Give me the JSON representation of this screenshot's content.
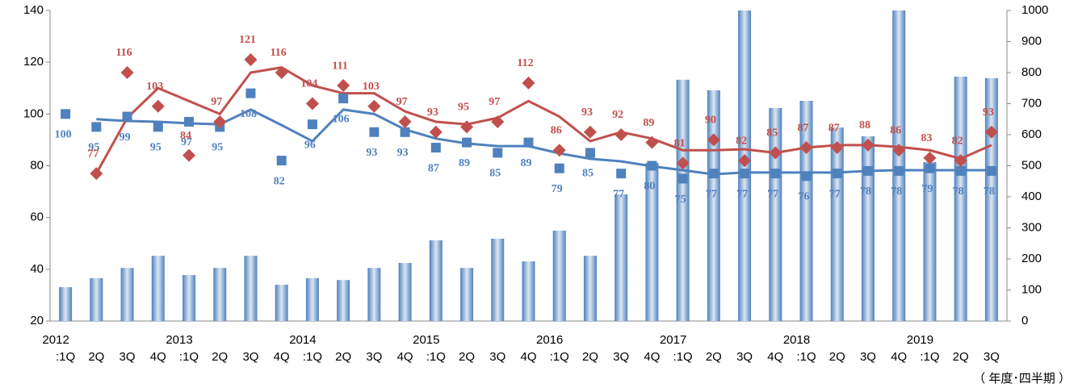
{
  "chart_data": {
    "type": "combo",
    "categories": [
      ":1Q",
      "2Q",
      "3Q",
      "4Q",
      ":1Q",
      "2Q",
      "3Q",
      "4Q",
      ":1Q",
      "2Q",
      "3Q",
      "4Q",
      ":1Q",
      "2Q",
      "3Q",
      "4Q",
      ":1Q",
      "2Q",
      "3Q",
      "4Q",
      ":1Q",
      "2Q",
      "3Q",
      "4Q",
      ":1Q",
      "2Q",
      "3Q",
      "4Q",
      ":1Q",
      "2Q",
      "3Q"
    ],
    "years": [
      "2012",
      null,
      null,
      null,
      "2013",
      null,
      null,
      null,
      "2014",
      null,
      null,
      null,
      "2015",
      null,
      null,
      null,
      "2016",
      null,
      null,
      null,
      "2017",
      null,
      null,
      null,
      "2018",
      null,
      null,
      null,
      "2019",
      null,
      null
    ],
    "unit_note": "（ 年度･四半期 ）",
    "ylim": [
      20,
      140
    ],
    "yticks": [
      20,
      40,
      60,
      80,
      100,
      120,
      140
    ],
    "y2lim": [
      0,
      1000
    ],
    "y2ticks": [
      0,
      100,
      200,
      300,
      400,
      500,
      600,
      700,
      800,
      900,
      1000
    ],
    "series": [
      {
        "type": "bar",
        "axis": "y2",
        "color": "#4f81bd",
        "values": [
          109,
          138,
          171,
          210,
          148,
          171,
          210,
          117,
          138,
          132,
          171,
          187,
          260,
          171,
          265,
          192,
          291,
          210,
          408,
          509,
          777,
          743,
          1000,
          686,
          709,
          623,
          595,
          1000,
          512,
          787,
          782
        ]
      },
      {
        "type": "line",
        "color": "#4f81bd",
        "values": [
          null,
          98,
          97.3,
          97,
          96.4,
          96,
          101.7,
          95.7,
          89.5,
          101.7,
          100,
          94,
          90.5,
          88.6,
          87.6,
          87.6,
          84.8,
          82.7,
          81.7,
          79.8,
          78.3,
          76.7,
          77.4,
          77.4,
          77.4,
          77.4,
          78,
          78.3,
          78.3,
          78.3,
          78.3
        ]
      },
      {
        "type": "line",
        "color": "#c0504d",
        "values": [
          null,
          77,
          98.5,
          110,
          105,
          100,
          116,
          118,
          111,
          108,
          108,
          101,
          97,
          96,
          98.5,
          105,
          99,
          89.5,
          93,
          90.5,
          86,
          86,
          86.4,
          85,
          87,
          88,
          88,
          87.3,
          86,
          82.7,
          88
        ]
      },
      {
        "type": "square",
        "color": "#4f81bd",
        "data_labels": true,
        "values": [
          100,
          95,
          99,
          95,
          97,
          95,
          108,
          82,
          96,
          106,
          93,
          93,
          87,
          89,
          85,
          89,
          79,
          85,
          77,
          80,
          75,
          77,
          77,
          77,
          76,
          77,
          78,
          78,
          79,
          78,
          78
        ]
      },
      {
        "type": "diamond",
        "color": "#c0504d",
        "data_labels": true,
        "values": [
          null,
          77,
          116,
          103,
          84,
          97,
          121,
          116,
          104,
          111,
          103,
          97,
          93,
          95,
          97,
          112,
          86,
          93,
          92,
          89,
          81,
          90,
          82,
          85,
          87,
          87,
          88,
          86,
          83,
          82,
          93
        ]
      }
    ]
  }
}
